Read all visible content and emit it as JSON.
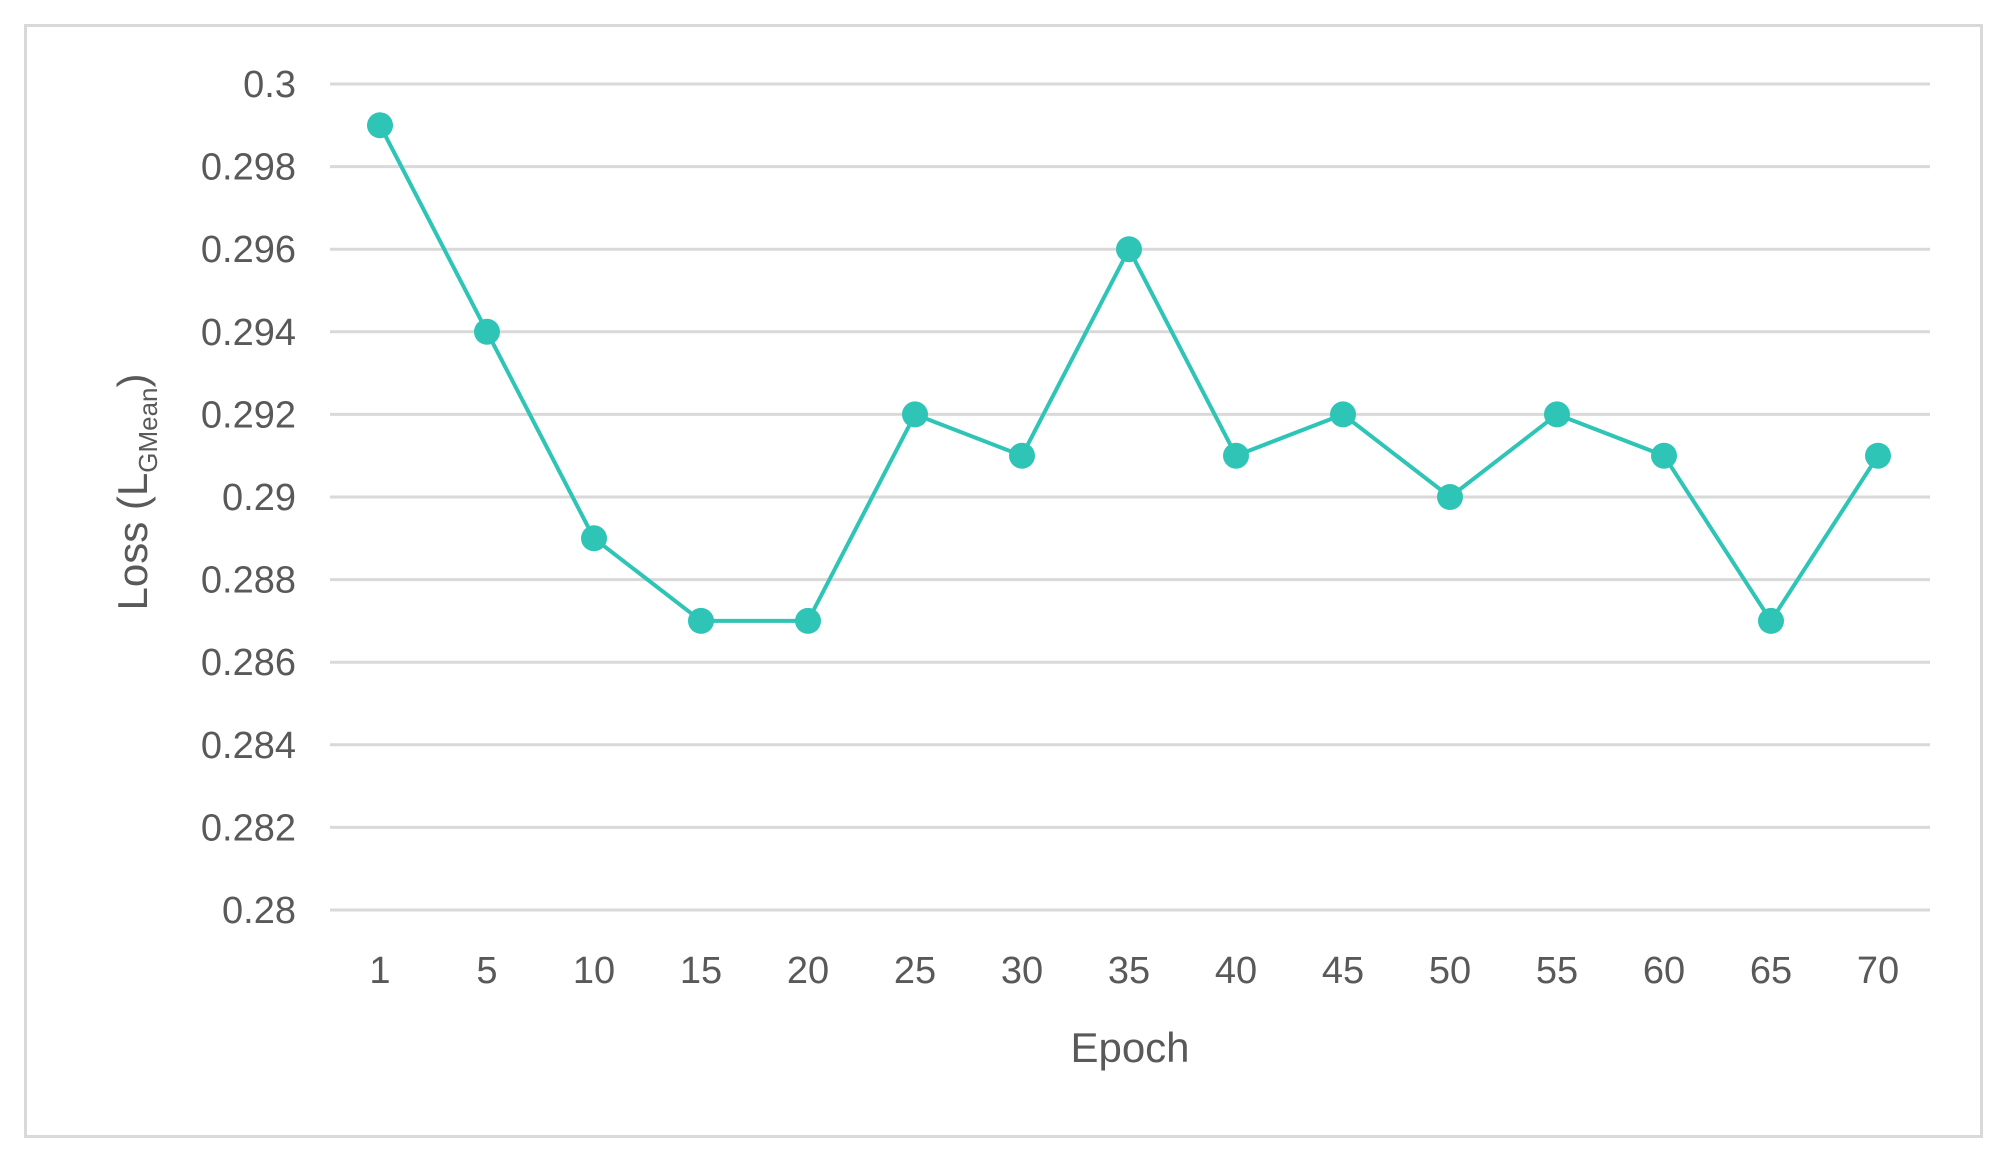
{
  "colors": {
    "series": "#2ec4b6",
    "grid": "#d9d9d9",
    "text": "#595959",
    "frame": "#d9d9d9"
  },
  "chart_data": {
    "type": "line",
    "categories": [
      "1",
      "5",
      "10",
      "15",
      "20",
      "25",
      "30",
      "35",
      "40",
      "45",
      "50",
      "55",
      "60",
      "65",
      "70"
    ],
    "series": [
      {
        "values": [
          0.299,
          0.294,
          0.289,
          0.287,
          0.287,
          0.292,
          0.291,
          0.296,
          0.291,
          0.292,
          0.29,
          0.292,
          0.291,
          0.287,
          0.291
        ],
        "color": "#2ec4b6",
        "marker": "circle"
      }
    ],
    "title": "",
    "xlabel": "Epoch",
    "ylabel": {
      "main": "Loss (L",
      "subscript": "GMean",
      "close": ")"
    },
    "ylim": [
      0.28,
      0.3
    ],
    "yticks": [
      "0.28",
      "0.282",
      "0.284",
      "0.286",
      "0.288",
      "0.29",
      "0.292",
      "0.294",
      "0.296",
      "0.298",
      "0.3"
    ],
    "grid": "horizontal",
    "legend": "none"
  }
}
